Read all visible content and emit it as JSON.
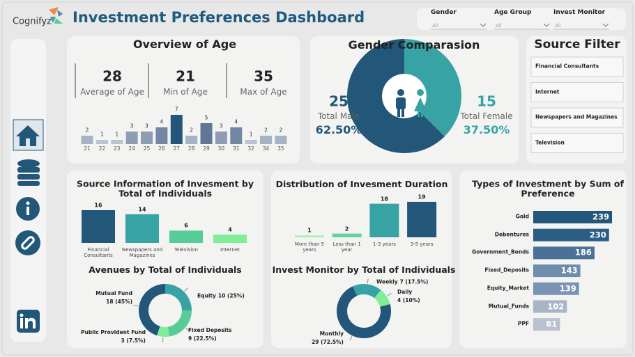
{
  "header": {
    "brand": "Cognifyz",
    "title": "Investment Preferences Dashboard"
  },
  "filters": [
    {
      "label": "Gender",
      "value": "All"
    },
    {
      "label": "Age Group",
      "value": "All"
    },
    {
      "label": "Invest Monitor",
      "value": "All"
    }
  ],
  "source_filter": {
    "title": "Source Filter",
    "items": [
      "Financial Consultants",
      "Internet",
      "Newspapers and Magazines",
      "Television"
    ]
  },
  "chart_data": [
    {
      "type": "bar",
      "title": "Overview of Age",
      "stats": [
        {
          "value": 28,
          "label": "Average of Age"
        },
        {
          "value": 21,
          "label": "Min of Age"
        },
        {
          "value": 35,
          "label": "Max of Age"
        }
      ],
      "categories": [
        "21",
        "22",
        "23",
        "24",
        "25",
        "26",
        "27",
        "28",
        "29",
        "30",
        "31",
        "32",
        "34",
        "35"
      ],
      "values": [
        2,
        1,
        1,
        3,
        3,
        4,
        7,
        2,
        5,
        3,
        4,
        1,
        2,
        2
      ],
      "colors": [
        "#a6b2c5",
        "#bac4d3",
        "#bac4d3",
        "#8d9db4",
        "#8d9db4",
        "#7487a2",
        "#24567b",
        "#a6b2c5",
        "#5f7694",
        "#8d9db4",
        "#7487a2",
        "#bac4d3",
        "#a6b2c5",
        "#a6b2c5"
      ]
    },
    {
      "type": "donut",
      "title": "Gender Comparasion",
      "categories": [
        "Total Male",
        "Total Female"
      ],
      "values": [
        25,
        15
      ],
      "shares": [
        62.5,
        37.5
      ],
      "share_labels": [
        "62.50%",
        "37.50%"
      ],
      "colors": [
        "#22577a",
        "#38a3a5"
      ]
    },
    {
      "type": "bar",
      "title": "Source Information of Invesment by Total of Individuals",
      "categories": [
        "Financial Consultants",
        "Newspapers and Magazines",
        "Television",
        "Internet"
      ],
      "values": [
        16,
        14,
        6,
        4
      ],
      "colors": [
        "#22577a",
        "#38a3a5",
        "#57cc99",
        "#80ed99"
      ]
    },
    {
      "type": "bar",
      "title": "Distribution of Invesment Duration",
      "categories": [
        "More than 5 years",
        "Less than 1 year",
        "1-3 years",
        "3-5 years"
      ],
      "values": [
        1,
        2,
        18,
        19
      ],
      "colors": [
        "#a6f0b4",
        "#62d39b",
        "#38a3a5",
        "#22577a"
      ]
    },
    {
      "type": "donut",
      "title": "Avenues by Total of Individuals",
      "categories": [
        "Mutual Fund",
        "Equity",
        "Fixed Deposits",
        "Public Provident Fund"
      ],
      "values": [
        18,
        10,
        9,
        3
      ],
      "value_labels": [
        "18 (45%)",
        "10 (25%)",
        "9 (22.5%)",
        "3 (7.5%)"
      ],
      "colors": [
        "#22577a",
        "#38a3a5",
        "#57cc99",
        "#80ed99"
      ]
    },
    {
      "type": "donut",
      "title": "Invest Monitor by Total of Individuals",
      "categories": [
        "Monthly",
        "Weekly",
        "Daily"
      ],
      "values": [
        29,
        7,
        4
      ],
      "value_labels": [
        "29 (72.5%)",
        "7 (17.5%)",
        "4 (10%)"
      ],
      "colors": [
        "#22577a",
        "#38a3a5",
        "#80ed99"
      ]
    },
    {
      "type": "hbar",
      "title": "Types of Investment by Sum of Preference",
      "categories": [
        "Gold",
        "Debentures",
        "Government_Bonds",
        "Fixed_Deposits",
        "Equity_Market",
        "Mutual_Funds",
        "PPF"
      ],
      "values": [
        239,
        230,
        186,
        143,
        139,
        102,
        81
      ],
      "colors": [
        "#22577a",
        "#2b5e82",
        "#4a7297",
        "#6f8cad",
        "#7b94b3",
        "#a9b5c7",
        "#b9c1cf"
      ]
    }
  ]
}
